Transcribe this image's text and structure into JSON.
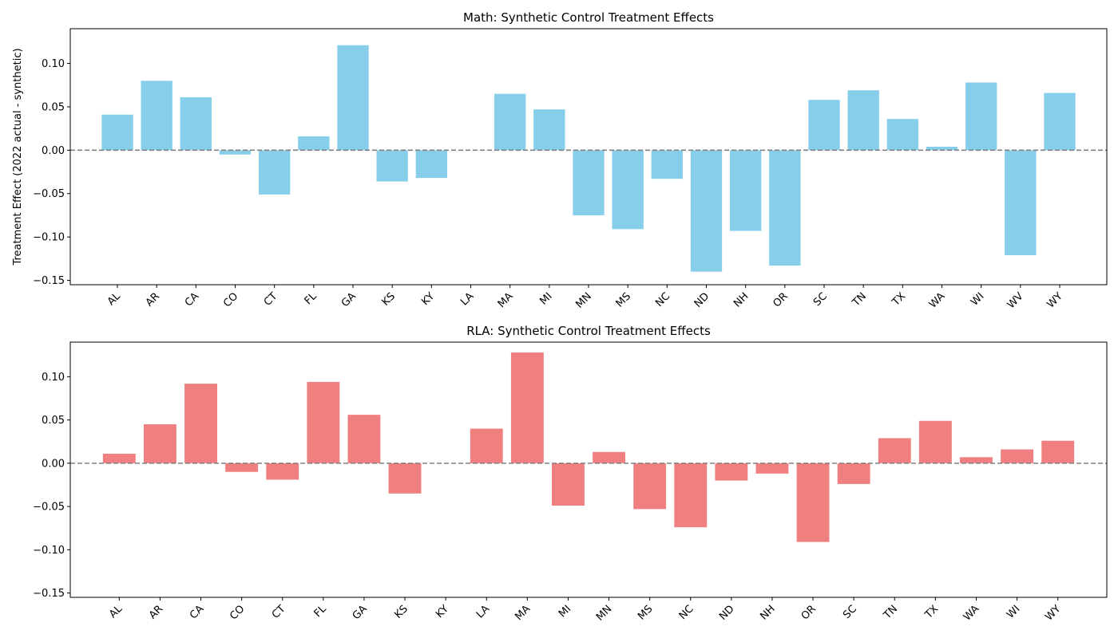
{
  "chart_data": [
    {
      "type": "bar",
      "title": "Math: Synthetic Control Treatment Effects",
      "ylabel": "Treatment Effect (2022 actual - synthetic)",
      "xlabel": "",
      "ylim": [
        -0.155,
        0.14
      ],
      "yticks": [
        -0.15,
        -0.1,
        -0.05,
        0.0,
        0.05,
        0.1
      ],
      "ytick_labels": [
        "−0.15",
        "−0.10",
        "−0.05",
        "0.00",
        "0.05",
        "0.10"
      ],
      "bar_color": "#87CEEB",
      "reference_line": {
        "y": 0,
        "color": "#808080",
        "style": "dashed"
      },
      "grid": false,
      "categories": [
        "AL",
        "AR",
        "CA",
        "CO",
        "CT",
        "FL",
        "GA",
        "KS",
        "KY",
        "LA",
        "MA",
        "MI",
        "MN",
        "MS",
        "NC",
        "ND",
        "NH",
        "OR",
        "SC",
        "TN",
        "TX",
        "WA",
        "WI",
        "WV",
        "WY"
      ],
      "values": [
        0.041,
        0.08,
        0.061,
        -0.005,
        -0.051,
        0.016,
        0.121,
        -0.036,
        -0.032,
        0.0,
        0.065,
        0.047,
        -0.075,
        -0.091,
        -0.033,
        -0.14,
        -0.093,
        -0.133,
        0.058,
        0.069,
        0.036,
        0.004,
        0.078,
        -0.121,
        0.066
      ]
    },
    {
      "type": "bar",
      "title": "RLA: Synthetic Control Treatment Effects",
      "ylabel": "",
      "xlabel": "",
      "ylim": [
        -0.155,
        0.14
      ],
      "yticks": [
        -0.15,
        -0.1,
        -0.05,
        0.0,
        0.05,
        0.1
      ],
      "ytick_labels": [
        "−0.15",
        "−0.10",
        "−0.05",
        "0.00",
        "0.05",
        "0.10"
      ],
      "bar_color": "#F08080",
      "reference_line": {
        "y": 0,
        "color": "#808080",
        "style": "dashed"
      },
      "grid": false,
      "categories": [
        "AL",
        "AR",
        "CA",
        "CO",
        "CT",
        "FL",
        "GA",
        "KS",
        "KY",
        "LA",
        "MA",
        "MI",
        "MN",
        "MS",
        "NC",
        "ND",
        "NH",
        "OR",
        "SC",
        "TN",
        "TX",
        "WA",
        "WI",
        "WY"
      ],
      "values": [
        0.011,
        0.045,
        0.092,
        -0.01,
        -0.019,
        0.094,
        0.056,
        -0.035,
        0.0,
        0.04,
        0.128,
        -0.049,
        0.013,
        -0.053,
        -0.074,
        -0.02,
        -0.012,
        -0.091,
        -0.024,
        0.029,
        0.049,
        0.007,
        0.016,
        0.026
      ]
    }
  ]
}
